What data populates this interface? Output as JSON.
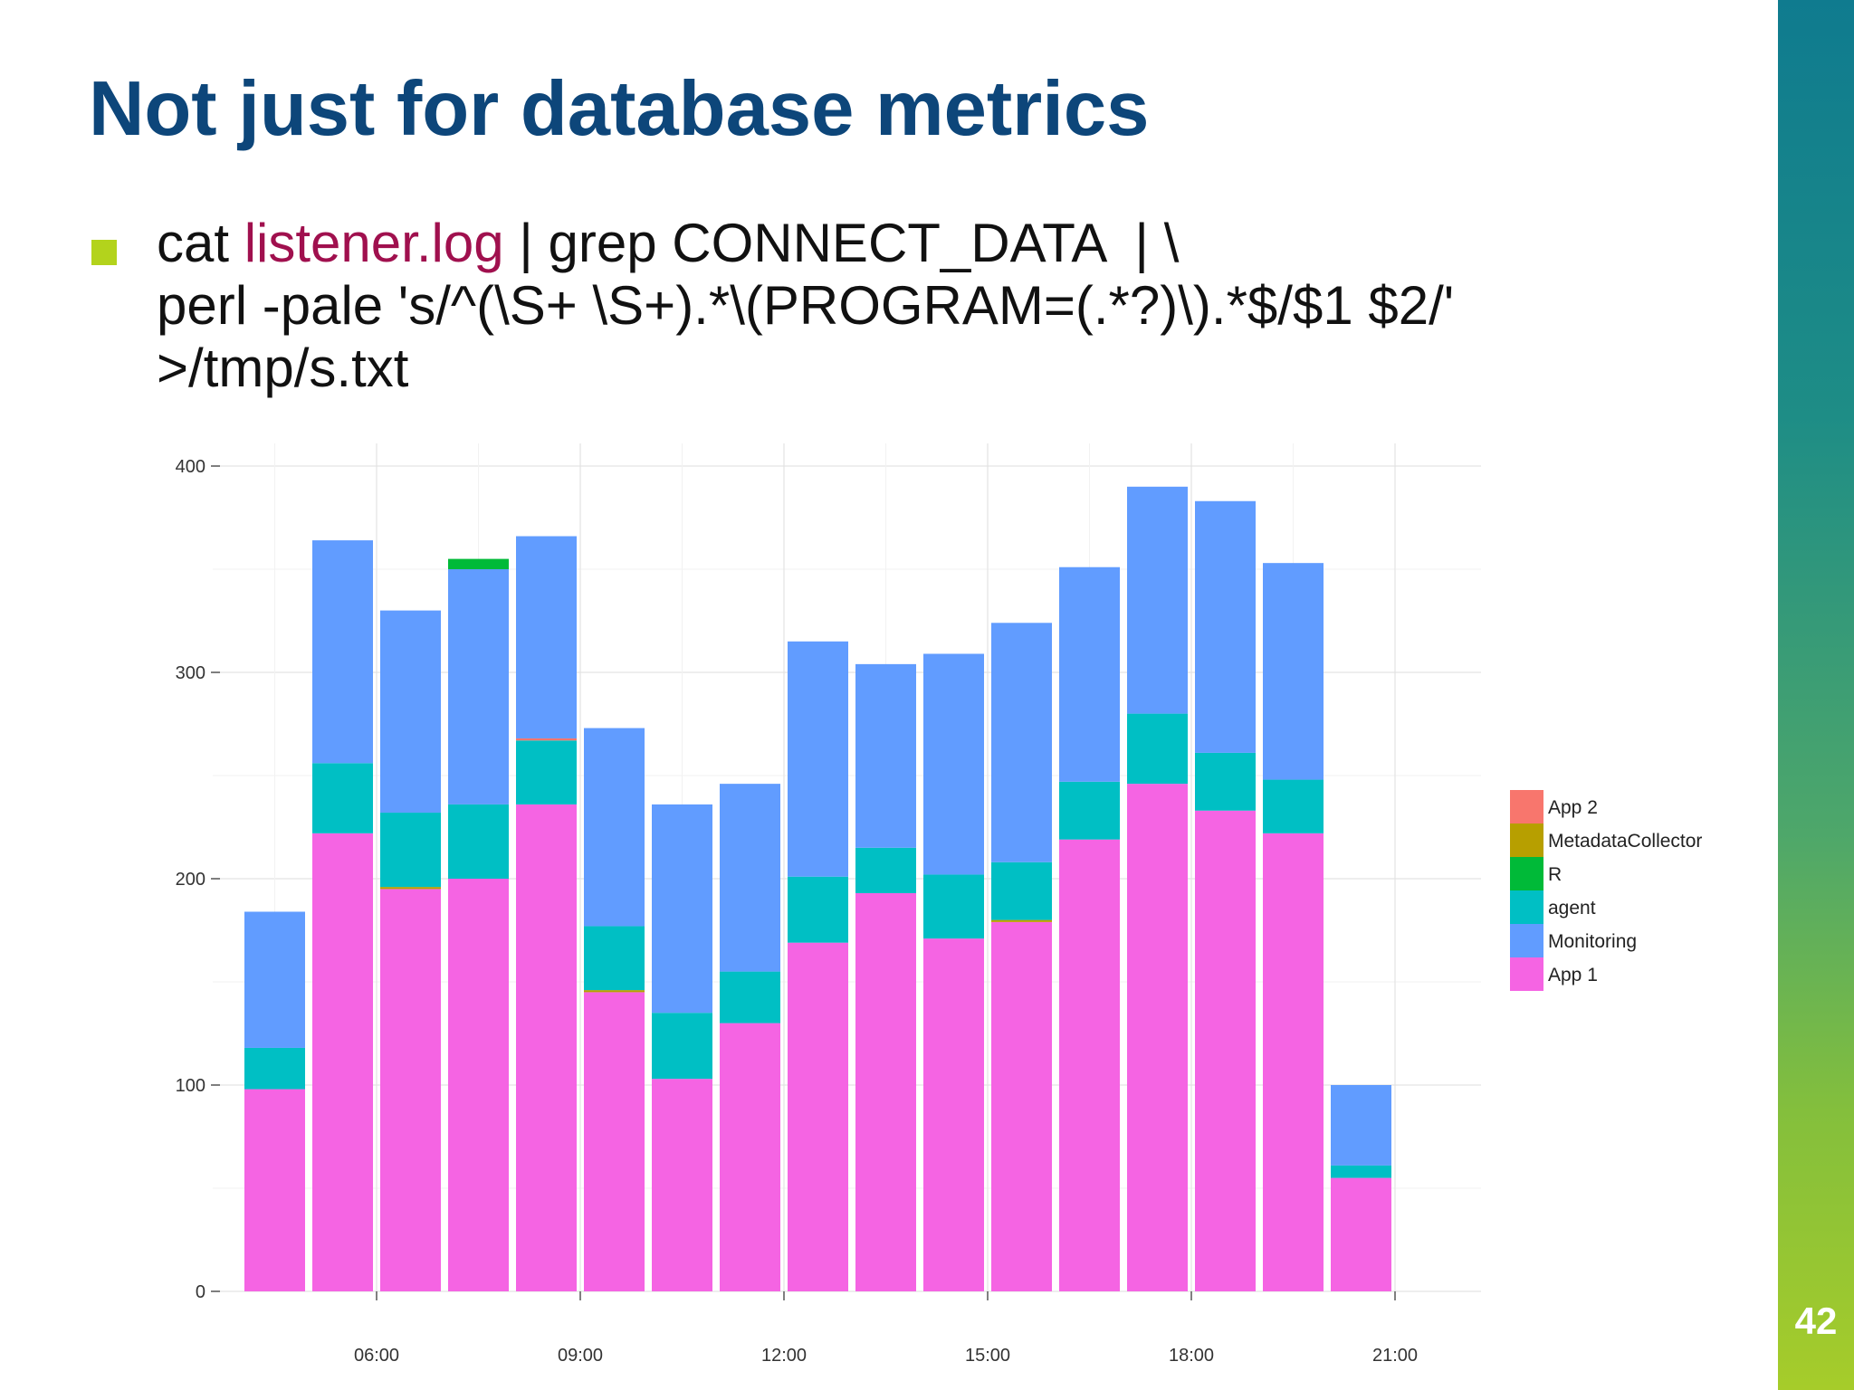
{
  "slide": {
    "title": "Not just for database metrics",
    "bullet": {
      "line1_prefix": "cat ",
      "line1_highlight": "listener.log",
      "line1_suffix": " | grep CONNECT_DATA  | \\",
      "line2": "perl -pale 's/^(\\S+ \\S+).*\\(PROGRAM=(.*?)\\).*$/$1 $2/'",
      "line3": ">/tmp/s.txt"
    },
    "page_number": "42",
    "colors": {
      "title": "#0d467a",
      "bullet_mark": "#b3d31c",
      "highlight": "#a0104e"
    }
  },
  "chart_data": {
    "type": "bar",
    "stacked": true,
    "title": "",
    "xlabel": "",
    "ylabel": "",
    "ylim": [
      0,
      410
    ],
    "y_ticks": [
      0,
      100,
      200,
      300,
      400
    ],
    "x_tick_labels": [
      "06:00",
      "09:00",
      "12:00",
      "15:00",
      "18:00",
      "21:00"
    ],
    "x_tick_hours": [
      6,
      9,
      12,
      15,
      18,
      21
    ],
    "x_hours": [
      4.5,
      5.5,
      6.5,
      7.5,
      8.5,
      9.5,
      10.5,
      11.5,
      12.5,
      13.5,
      14.5,
      15.5,
      16.5,
      17.5,
      18.5,
      19.5,
      20.5
    ],
    "grid": true,
    "legend_position": "right",
    "series": [
      {
        "name": "App 1",
        "color": "#f564e3",
        "values": [
          98,
          222,
          195,
          200,
          236,
          145,
          103,
          130,
          169,
          193,
          171,
          179,
          219,
          246,
          233,
          222,
          55
        ]
      },
      {
        "name": "MetadataCollector",
        "color": "#b79f00",
        "values": [
          0,
          0,
          1,
          0,
          0,
          1,
          0,
          0,
          0,
          0,
          0,
          1,
          0,
          0,
          0,
          0,
          0
        ]
      },
      {
        "name": "agent",
        "color": "#00bfc4",
        "values": [
          20,
          34,
          36,
          36,
          31,
          31,
          32,
          25,
          32,
          22,
          31,
          28,
          28,
          34,
          28,
          26,
          6
        ]
      },
      {
        "name": "App 2",
        "color": "#f8766d",
        "values": [
          0,
          0,
          0,
          0,
          1,
          0,
          0,
          0,
          0,
          0,
          0,
          0,
          0,
          0,
          0,
          0,
          0
        ]
      },
      {
        "name": "Monitoring",
        "color": "#619cff",
        "values": [
          66,
          108,
          98,
          114,
          98,
          96,
          101,
          91,
          114,
          89,
          107,
          116,
          104,
          110,
          122,
          105,
          39
        ]
      },
      {
        "name": "R",
        "color": "#00ba38",
        "values": [
          0,
          0,
          0,
          5,
          0,
          0,
          0,
          0,
          0,
          0,
          0,
          0,
          0,
          0,
          0,
          0,
          0
        ]
      }
    ],
    "legend": [
      {
        "name": "App 2",
        "color": "#f8766d"
      },
      {
        "name": "MetadataCollector",
        "color": "#b79f00"
      },
      {
        "name": "R",
        "color": "#00ba38"
      },
      {
        "name": "agent",
        "color": "#00bfc4"
      },
      {
        "name": "Monitoring",
        "color": "#619cff"
      },
      {
        "name": "App 1",
        "color": "#f564e3"
      }
    ]
  }
}
